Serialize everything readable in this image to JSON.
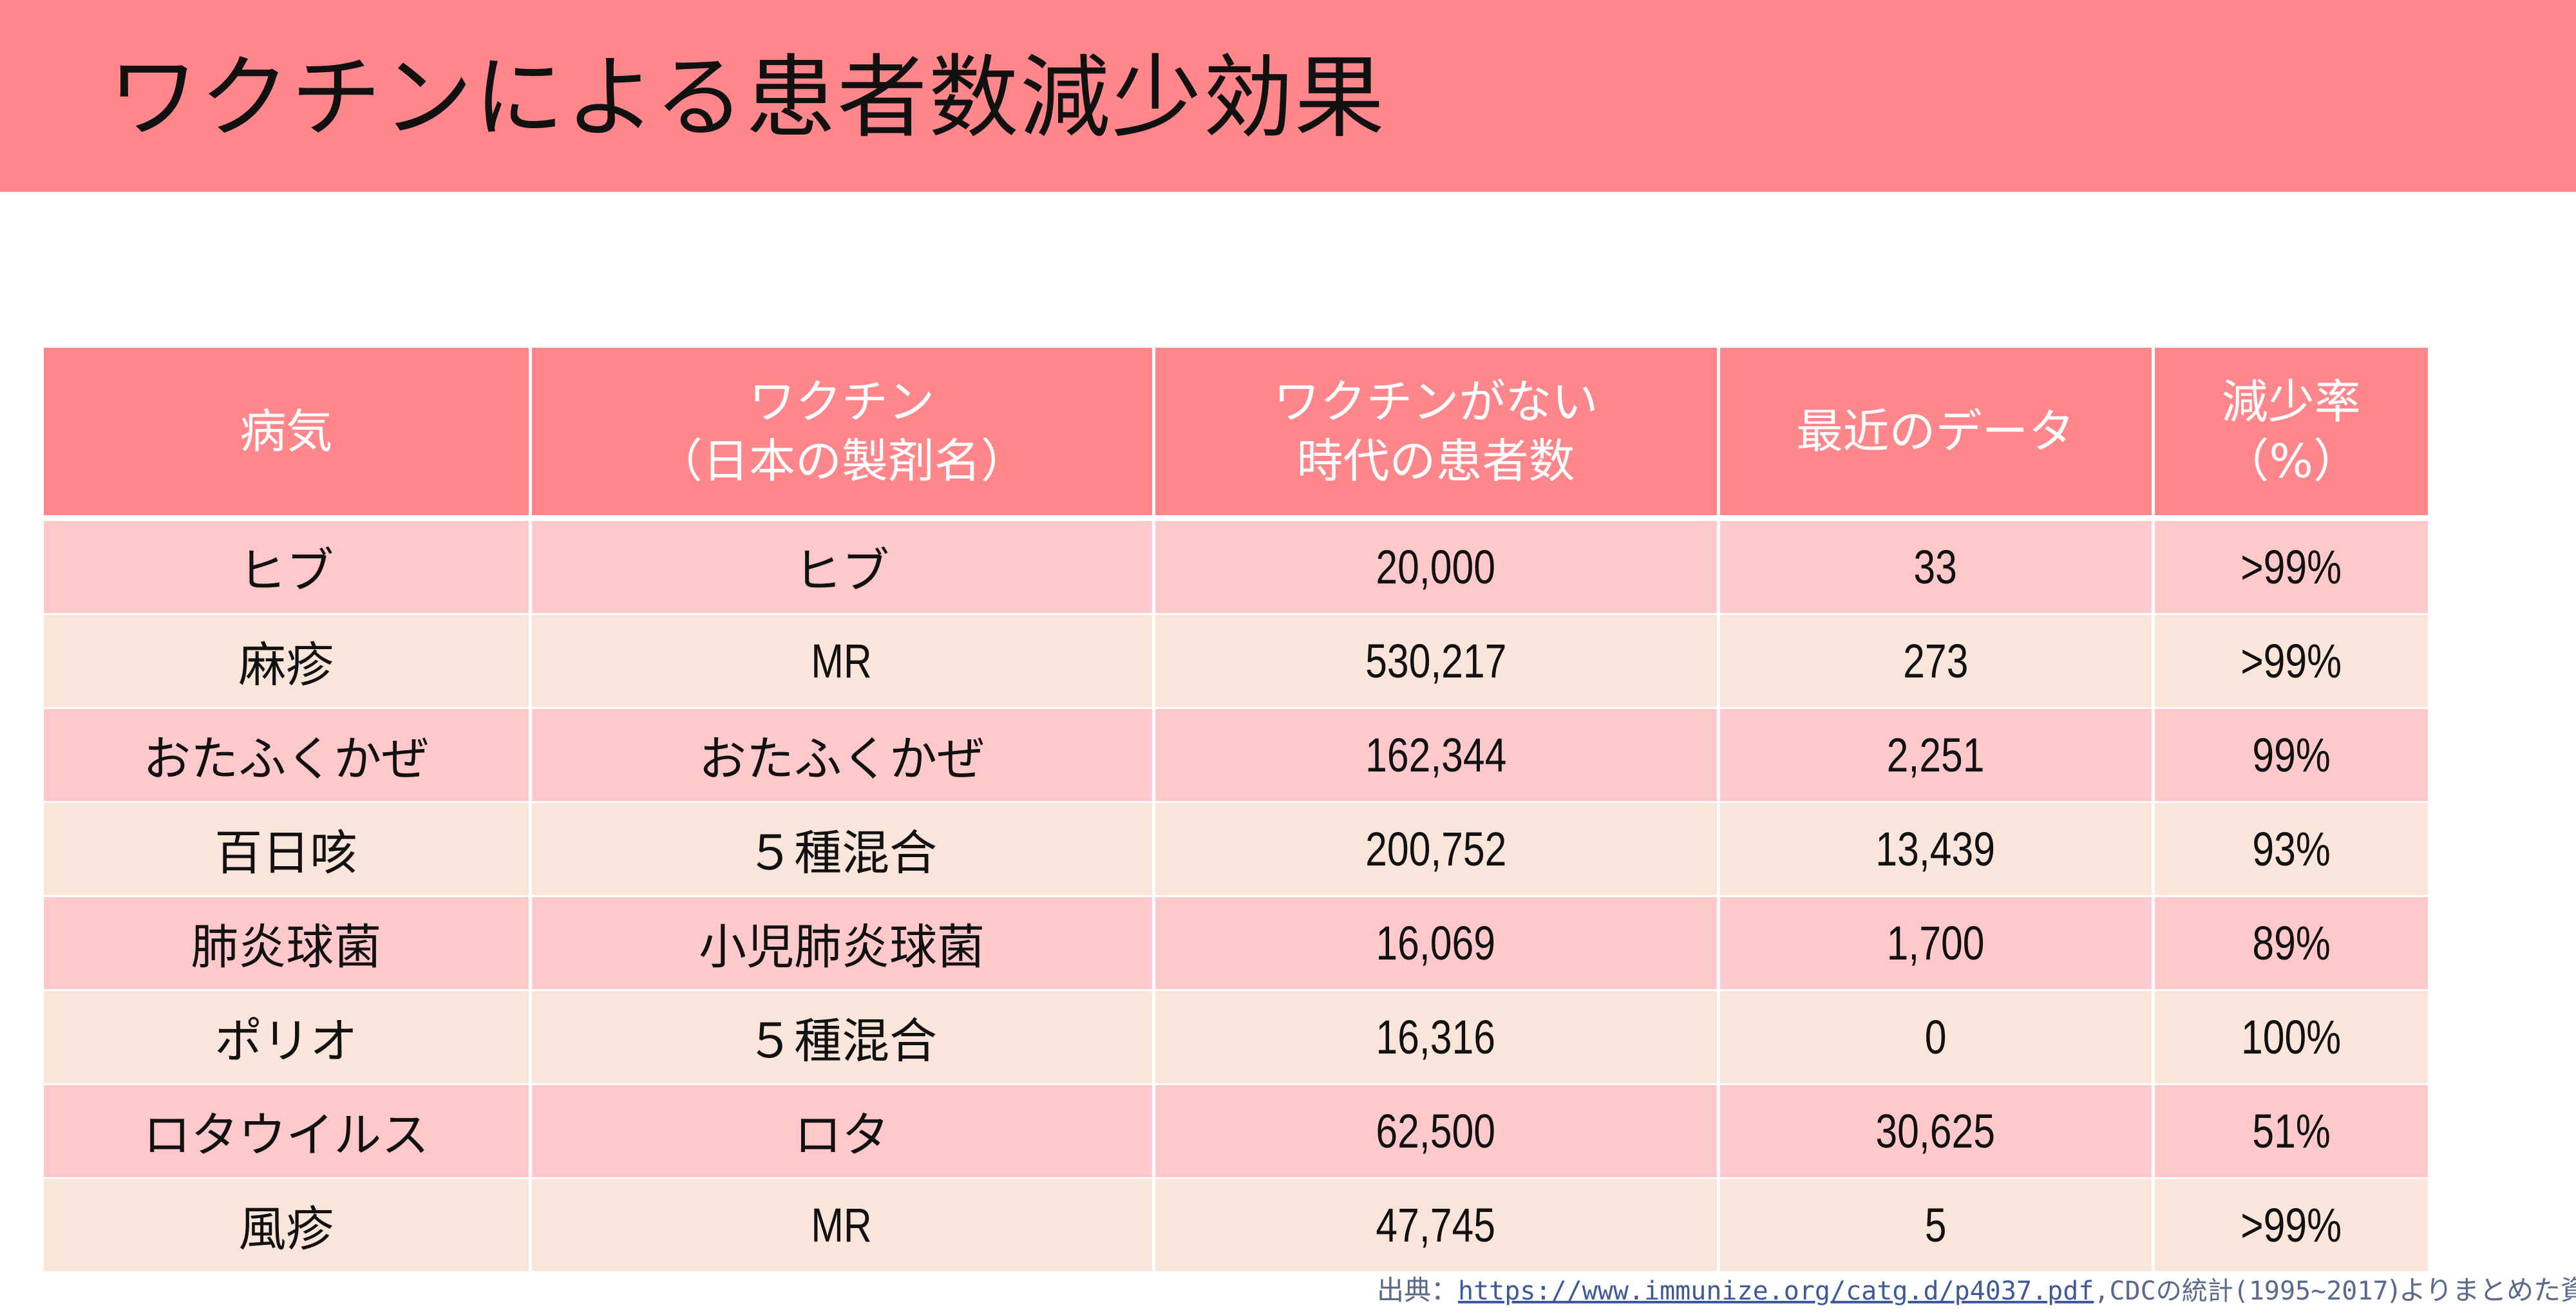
{
  "title": "ワクチンによる患者数減少効果",
  "table": {
    "headers": [
      [
        "病気"
      ],
      [
        "ワクチン",
        "（日本の製剤名）"
      ],
      [
        "ワクチンがない",
        "時代の患者数"
      ],
      [
        "最近のデータ"
      ],
      [
        "減少率",
        "（%）"
      ]
    ],
    "rows": [
      {
        "disease": "ヒブ",
        "vaccine": "ヒブ",
        "before": "20,000",
        "recent": "33",
        "rate": ">99%"
      },
      {
        "disease": "麻疹",
        "vaccine": "MR",
        "before": "530,217",
        "recent": "273",
        "rate": ">99%"
      },
      {
        "disease": "おたふくかぜ",
        "vaccine": "おたふくかぜ",
        "before": "162,344",
        "recent": "2,251",
        "rate": "99%"
      },
      {
        "disease": "百日咳",
        "vaccine": "５種混合",
        "before": "200,752",
        "recent": "13,439",
        "rate": "93%"
      },
      {
        "disease": "肺炎球菌",
        "vaccine": "小児肺炎球菌",
        "before": "16,069",
        "recent": "1,700",
        "rate": "89%"
      },
      {
        "disease": "ポリオ",
        "vaccine": "５種混合",
        "before": "16,316",
        "recent": "0",
        "rate": "100%"
      },
      {
        "disease": "ロタウイルス",
        "vaccine": "ロタ",
        "before": "62,500",
        "recent": "30,625",
        "rate": "51%"
      },
      {
        "disease": "風疹",
        "vaccine": "MR",
        "before": "47,745",
        "recent": "5",
        "rate": ">99%"
      }
    ]
  },
  "source": {
    "prefix": "出典：",
    "url": "https://www.immunize.org/catg.d/p4037.pdf",
    "suffix_a": ",CDCの統計(",
    "years": "1995~2017",
    "suffix_b": ")よりまとめた資料"
  },
  "colors": {
    "accent": "#ff878c",
    "row_pink": "#ffc9cc",
    "row_beige": "#fae5da"
  }
}
